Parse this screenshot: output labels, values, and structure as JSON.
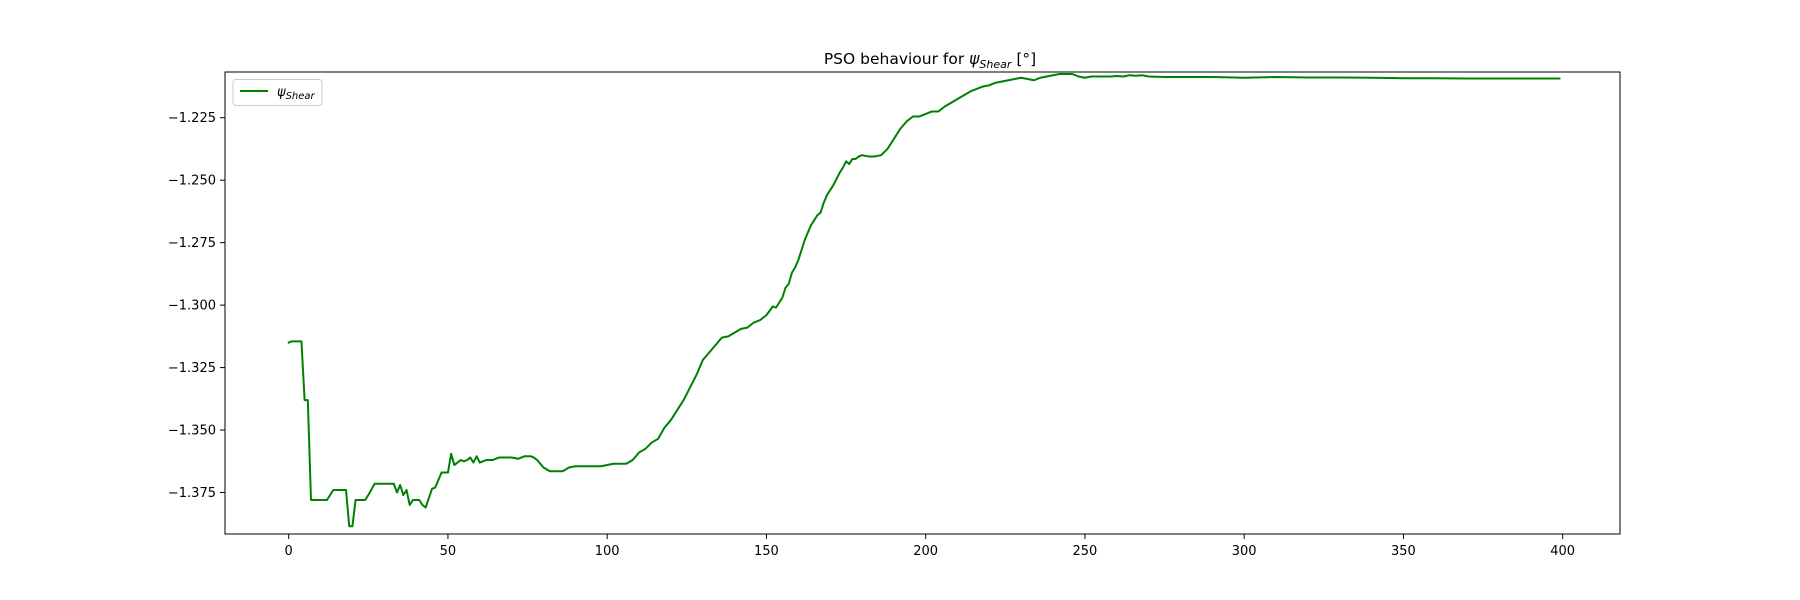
{
  "chart_data": {
    "type": "line",
    "title": {
      "prefix": "PSO behaviour for ",
      "symbol": "ψ",
      "subscript": "Shear",
      "suffix": " [°]"
    },
    "xlabel": "",
    "ylabel": "",
    "xlim": [
      -20,
      418
    ],
    "ylim": [
      -1.3916,
      -1.2067
    ],
    "xticks": [
      0,
      50,
      100,
      150,
      200,
      250,
      300,
      350,
      400
    ],
    "xtick_labels": [
      "0",
      "50",
      "100",
      "150",
      "200",
      "250",
      "300",
      "350",
      "400"
    ],
    "yticks": [
      -1.225,
      -1.25,
      -1.275,
      -1.3,
      -1.325,
      -1.35,
      -1.375
    ],
    "ytick_labels": [
      "−1.225",
      "−1.250",
      "−1.275",
      "−1.300",
      "−1.325",
      "−1.350",
      "−1.375"
    ],
    "grid": false,
    "legend": {
      "position": "top-left",
      "entries": [
        {
          "symbol": "ψ",
          "subscript": "Shear",
          "color": "#008000"
        }
      ]
    },
    "series": [
      {
        "name": "ψShear",
        "color": "#008000",
        "x": [
          0,
          1,
          2,
          3,
          4,
          5,
          6,
          7,
          8,
          10,
          12,
          13,
          14,
          16,
          17,
          18,
          19,
          20,
          21,
          22,
          24,
          25,
          27,
          30,
          31,
          32,
          33,
          34,
          35,
          36,
          37,
          38,
          39,
          40,
          41,
          42,
          43,
          45,
          46,
          48,
          49,
          50,
          51,
          52,
          54,
          55,
          56,
          57,
          58,
          59,
          60,
          62,
          64,
          66,
          68,
          70,
          72,
          74,
          76,
          77,
          78,
          80,
          82,
          84,
          86,
          88,
          90,
          92,
          95,
          98,
          100,
          102,
          104,
          106,
          108,
          110,
          112,
          114,
          116,
          118,
          120,
          122,
          124,
          126,
          128,
          130,
          132,
          134,
          136,
          138,
          140,
          142,
          144,
          146,
          148,
          150,
          152,
          153,
          154,
          155,
          156,
          157,
          158,
          159,
          160,
          161,
          162,
          163,
          164,
          165,
          166,
          167,
          168,
          169,
          170,
          171,
          172,
          173,
          174,
          175,
          176,
          177,
          178,
          179,
          180,
          182,
          184,
          186,
          188,
          190,
          192,
          194,
          196,
          198,
          200,
          202,
          204,
          206,
          208,
          210,
          212,
          214,
          216,
          218,
          220,
          222,
          224,
          226,
          228,
          230,
          232,
          234,
          236,
          238,
          240,
          242,
          244,
          246,
          248,
          250,
          252,
          254,
          256,
          258,
          260,
          262,
          264,
          266,
          268,
          270,
          275,
          280,
          290,
          300,
          310,
          320,
          330,
          340,
          350,
          360,
          370,
          380,
          390,
          399
        ],
        "y": [
          -1.315,
          -1.3145,
          -1.3145,
          -1.3145,
          -1.3145,
          -1.338,
          -1.338,
          -1.378,
          -1.378,
          -1.378,
          -1.378,
          -1.376,
          -1.374,
          -1.374,
          -1.374,
          -1.374,
          -1.3885,
          -1.3885,
          -1.378,
          -1.378,
          -1.378,
          -1.376,
          -1.3715,
          -1.3715,
          -1.3715,
          -1.3715,
          -1.3715,
          -1.375,
          -1.372,
          -1.376,
          -1.374,
          -1.38,
          -1.378,
          -1.378,
          -1.378,
          -1.38,
          -1.381,
          -1.3735,
          -1.373,
          -1.367,
          -1.367,
          -1.367,
          -1.3595,
          -1.364,
          -1.362,
          -1.3625,
          -1.362,
          -1.361,
          -1.363,
          -1.3605,
          -1.363,
          -1.362,
          -1.362,
          -1.361,
          -1.361,
          -1.361,
          -1.3615,
          -1.3605,
          -1.3605,
          -1.361,
          -1.362,
          -1.365,
          -1.3665,
          -1.3665,
          -1.3665,
          -1.365,
          -1.3645,
          -1.3645,
          -1.3645,
          -1.3645,
          -1.364,
          -1.3635,
          -1.3635,
          -1.3635,
          -1.362,
          -1.359,
          -1.3575,
          -1.355,
          -1.3535,
          -1.349,
          -1.346,
          -1.342,
          -1.338,
          -1.333,
          -1.328,
          -1.322,
          -1.319,
          -1.316,
          -1.313,
          -1.3125,
          -1.311,
          -1.3095,
          -1.309,
          -1.307,
          -1.306,
          -1.304,
          -1.3005,
          -1.301,
          -1.299,
          -1.297,
          -1.293,
          -1.2915,
          -1.287,
          -1.285,
          -1.282,
          -1.278,
          -1.274,
          -1.271,
          -1.268,
          -1.266,
          -1.264,
          -1.263,
          -1.259,
          -1.256,
          -1.254,
          -1.252,
          -1.2495,
          -1.247,
          -1.245,
          -1.2425,
          -1.2435,
          -1.2415,
          -1.2415,
          -1.2405,
          -1.24,
          -1.2405,
          -1.2405,
          -1.24,
          -1.2375,
          -1.2335,
          -1.2295,
          -1.2265,
          -1.2245,
          -1.2245,
          -1.2235,
          -1.2225,
          -1.2225,
          -1.2205,
          -1.219,
          -1.2175,
          -1.216,
          -1.2145,
          -1.2135,
          -1.2125,
          -1.212,
          -1.211,
          -1.2105,
          -1.21,
          -1.2095,
          -1.209,
          -1.2095,
          -1.21,
          -1.209,
          -1.2085,
          -1.208,
          -1.2075,
          -1.2075,
          -1.2075,
          -1.2085,
          -1.209,
          -1.2085,
          -1.2085,
          -1.2085,
          -1.2085,
          -1.2083,
          -1.2085,
          -1.208,
          -1.2082,
          -1.208,
          -1.2085,
          -1.2087,
          -1.2087,
          -1.2087,
          -1.209,
          -1.2087,
          -1.2089,
          -1.2089,
          -1.209,
          -1.2092,
          -1.2092,
          -1.2093,
          -1.2093,
          -1.2093,
          -1.2093
        ]
      }
    ]
  }
}
